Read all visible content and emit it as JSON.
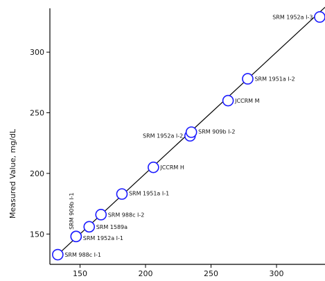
{
  "chart_data": {
    "type": "scatter",
    "title": "",
    "xlabel": "",
    "ylabel": "Measured Value, mg/dL",
    "xlim": [
      127,
      337
    ],
    "ylim": [
      125,
      343
    ],
    "x_ticks": [
      150,
      200,
      250,
      300
    ],
    "y_ticks": [
      150,
      200,
      250,
      300
    ],
    "grid": false,
    "marker_color": "#1a1aff",
    "line_color": "#000000",
    "reference_line": [
      [
        130,
        130
      ],
      [
        337,
        337
      ]
    ],
    "points": [
      {
        "x": 133,
        "y": 133,
        "label": "SRM 988c I-1"
      },
      {
        "x": 147,
        "y": 148,
        "label": "SRM 1952a I-1"
      },
      {
        "x": 147,
        "y": 148,
        "label": "SRM 909b I-1"
      },
      {
        "x": 157,
        "y": 156,
        "label": "SRM 1589a"
      },
      {
        "x": 166,
        "y": 166,
        "label": "SRM 988c I-2"
      },
      {
        "x": 182,
        "y": 183,
        "label": "SRM 1951a I-1"
      },
      {
        "x": 206,
        "y": 205,
        "label": "JCCRM H"
      },
      {
        "x": 234,
        "y": 231,
        "label": "SRM 1952a I-2"
      },
      {
        "x": 235,
        "y": 234,
        "label": "SRM 909b I-2"
      },
      {
        "x": 263,
        "y": 260,
        "label": "JCCRM M"
      },
      {
        "x": 278,
        "y": 278,
        "label": "SRM 1951a I-2"
      },
      {
        "x": 333,
        "y": 329,
        "label": "SRM 1952a I-3"
      }
    ]
  }
}
